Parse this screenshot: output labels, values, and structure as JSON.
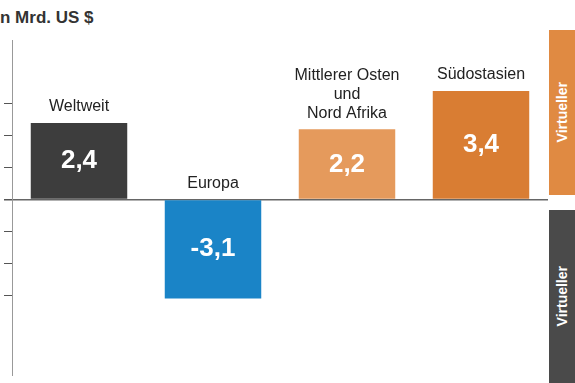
{
  "chart_data": {
    "type": "bar",
    "title": "n Mrd. US $",
    "categories": [
      "Weltweit",
      "Europa",
      [
        "Mittlerer Osten",
        "und",
        "Nord Afrika"
      ],
      "Südostasien"
    ],
    "values": [
      2.4,
      -3.1,
      2.2,
      3.4
    ],
    "value_labels": [
      "2,4",
      "-3,1",
      "2,2",
      "3,4"
    ],
    "colors": [
      "#3d3d3d",
      "#1a84c7",
      "#e59a5c",
      "#d97d33"
    ],
    "ylim": [
      -5.5,
      5
    ],
    "yticks": [
      -3,
      -2,
      -1,
      0,
      1,
      2,
      3
    ],
    "grid": false,
    "data_labels": true,
    "tick_labels": false,
    "annotations": [
      {
        "text": "Virtueller",
        "color": "#e08a42"
      },
      {
        "text": "Virtueller",
        "color": "#4a4a4a"
      }
    ]
  }
}
